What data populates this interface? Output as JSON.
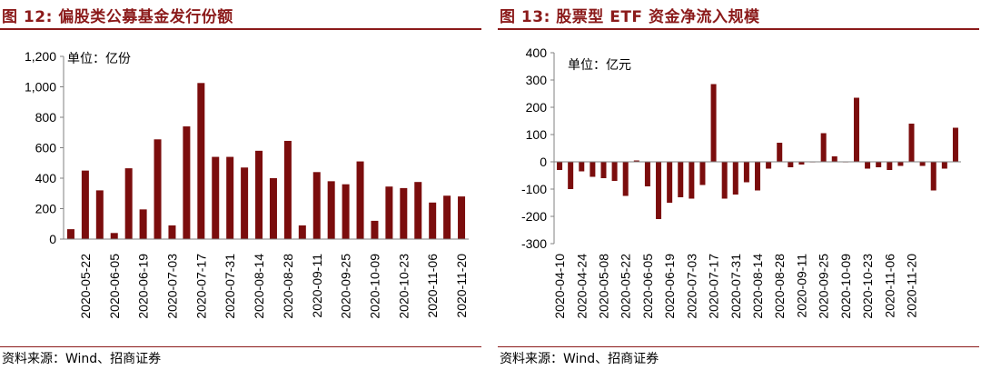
{
  "colors": {
    "bar": "#7b0d0d",
    "accent": "#8b1a1a",
    "axis": "#808080"
  },
  "left": {
    "title": "图 12:  偏股类公募基金发行份额",
    "source": "资料来源：Wind、招商证券",
    "chart_data": {
      "type": "bar",
      "title": "偏股类公募基金发行份额",
      "unit_label": "单位：亿份",
      "ylim": [
        0,
        1200
      ],
      "yticks": [
        0,
        200,
        400,
        600,
        800,
        1000,
        1200
      ],
      "ytick_labels": [
        "0",
        "200",
        "400",
        "600",
        "800",
        "1,000",
        "1,200"
      ],
      "xtick_labels": [
        "2020-05-22",
        "2020-06-05",
        "2020-06-19",
        "2020-07-03",
        "2020-07-17",
        "2020-07-31",
        "2020-08-14",
        "2020-08-28",
        "2020-09-11",
        "2020-09-25",
        "2020-10-09",
        "2020-10-23",
        "2020-11-06",
        "2020-11-20"
      ],
      "values": [
        65,
        450,
        320,
        40,
        465,
        195,
        655,
        90,
        740,
        1025,
        540,
        540,
        470,
        580,
        400,
        645,
        90,
        440,
        380,
        360,
        510,
        120,
        345,
        335,
        375,
        240,
        285,
        280
      ]
    }
  },
  "right": {
    "title": "图 13:  股票型 ETF 资金净流入规模",
    "source": "资料来源：Wind、招商证券",
    "chart_data": {
      "type": "bar",
      "title": "股票型 ETF 资金净流入规模",
      "unit_label": "单位：亿元",
      "ylim": [
        -300,
        400
      ],
      "yticks": [
        -300,
        -200,
        -100,
        0,
        100,
        200,
        300,
        400
      ],
      "ytick_labels": [
        "-300",
        "-200",
        "-100",
        "0",
        "100",
        "200",
        "300",
        "400"
      ],
      "xtick_labels": [
        "2020-04-10",
        "2020-04-24",
        "2020-05-08",
        "2020-05-22",
        "2020-06-05",
        "2020-06-19",
        "2020-07-03",
        "2020-07-17",
        "2020-07-31",
        "2020-08-14",
        "2020-08-28",
        "2020-09-11",
        "2020-09-25",
        "2020-10-09",
        "2020-10-23",
        "2020-11-06",
        "2020-11-20"
      ],
      "values": [
        -30,
        -100,
        -35,
        -55,
        -60,
        -70,
        -125,
        5,
        -90,
        -210,
        -150,
        -130,
        -135,
        -85,
        285,
        -135,
        -120,
        -75,
        -105,
        -25,
        70,
        -20,
        -10,
        0,
        105,
        20,
        0,
        235,
        -25,
        -20,
        -30,
        -15,
        140,
        -15,
        -105,
        -25,
        125
      ]
    }
  }
}
